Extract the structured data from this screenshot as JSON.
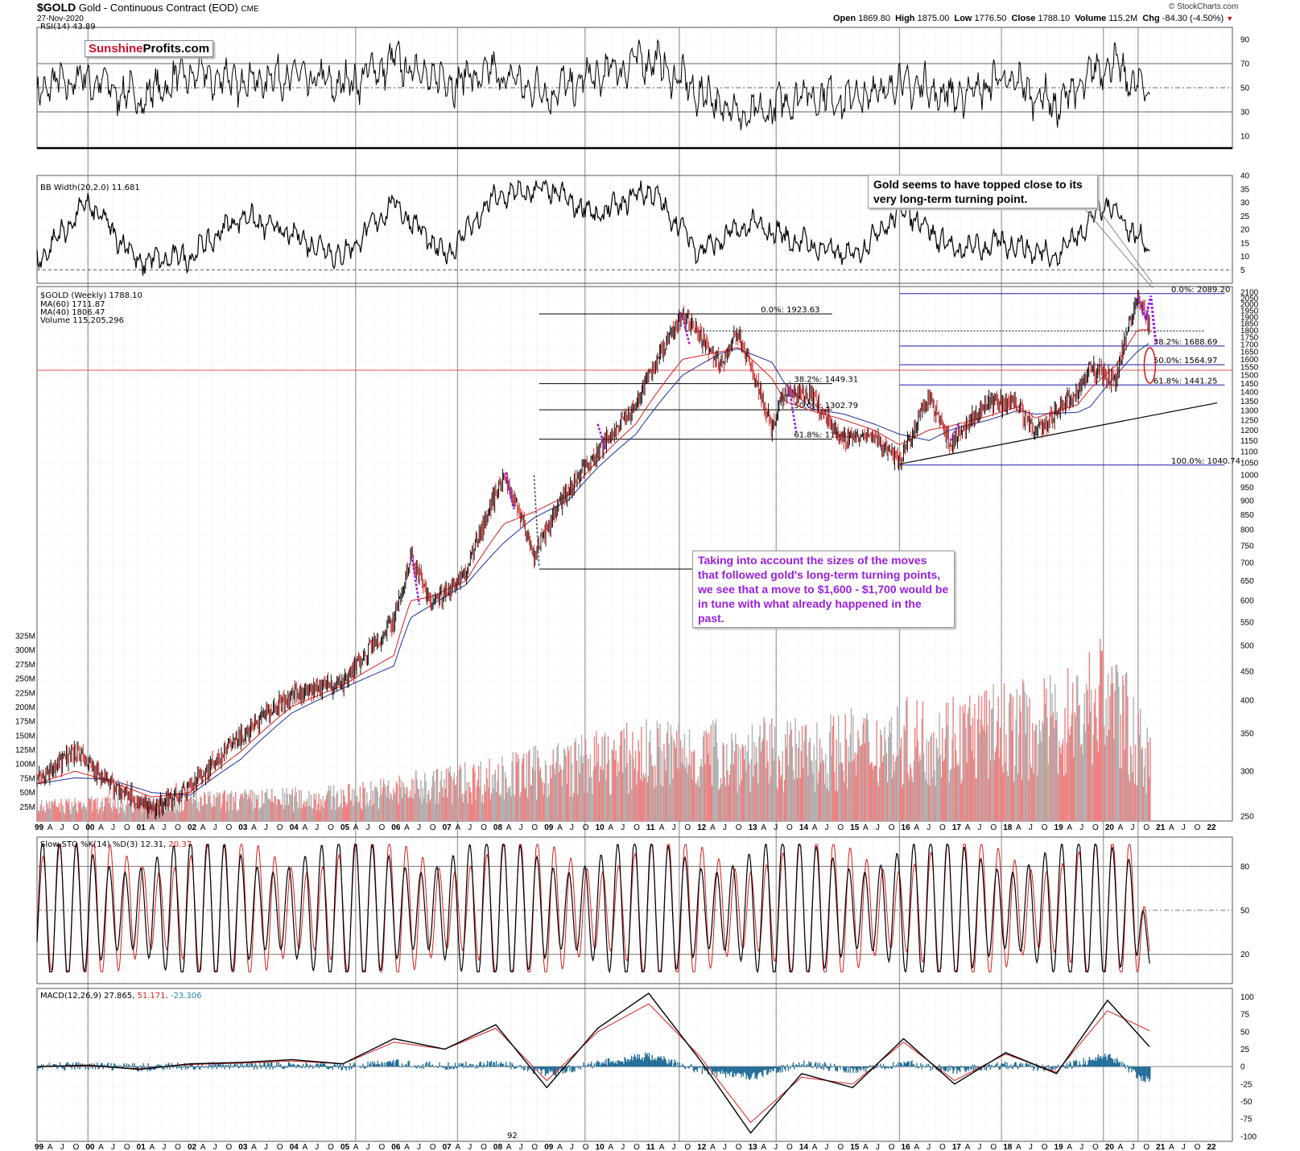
{
  "header": {
    "symbol": "$GOLD",
    "name": "Gold - Continuous Contract (EOD)",
    "exchange": "CME",
    "date": "27-Nov-2020",
    "copyright": "© StockCharts.com",
    "open_label": "Open",
    "open": "1869.80",
    "high_label": "High",
    "high": "1875.00",
    "low_label": "Low",
    "low": "1776.50",
    "close_label": "Close",
    "close": "1788.10",
    "volume_label": "Volume",
    "volume": "115.2M",
    "chg_label": "Chg",
    "chg": "-84.30 (-4.50%)"
  },
  "logo": {
    "part1": "Sunshine",
    "part2": "Profits.com"
  },
  "panels": {
    "rsi": {
      "label": "RSI(14) 43.89",
      "ticks": [
        "90",
        "70",
        "50",
        "30",
        "10"
      ]
    },
    "bbw": {
      "label": "BB Width(20,2.0) 11.681",
      "ticks": [
        "40",
        "35",
        "30",
        "25",
        "20",
        "15",
        "10",
        "5"
      ]
    },
    "price": {
      "legend": [
        "$GOLD (Weekly) 1788.10",
        "MA(60) 1711.87",
        "MA(40) 1806.47",
        "Volume 115,205,296"
      ],
      "ticks": [
        "2100",
        "2050",
        "2000",
        "1950",
        "1900",
        "1850",
        "1800",
        "1750",
        "1700",
        "1650",
        "1600",
        "1550",
        "1500",
        "1450",
        "1400",
        "1350",
        "1300",
        "1250",
        "1200",
        "1150",
        "1100",
        "1050",
        "1000",
        "950",
        "900",
        "850",
        "800",
        "750",
        "700",
        "650",
        "600",
        "550",
        "500",
        "450",
        "400",
        "350",
        "300",
        "250"
      ],
      "volume_ticks": [
        "325M",
        "300M",
        "275M",
        "250M",
        "225M",
        "200M",
        "175M",
        "150M",
        "125M",
        "100M",
        "75M",
        "50M",
        "25M"
      ]
    },
    "sto": {
      "label": "Slow STO %K(14) %D(3) 12.31,",
      "label_d": "20.37",
      "ticks": [
        "80",
        "50",
        "20"
      ]
    },
    "macd": {
      "label": "MACD(12,26,9) 27.865,",
      "label_signal": "51.171,",
      "label_hist": "-23.306",
      "ticks": [
        "100",
        "75",
        "50",
        "25",
        "0",
        "-25",
        "-50",
        "-75",
        "-100"
      ],
      "extra_label": "92"
    }
  },
  "x_axis_labels": [
    "99",
    "A",
    "J",
    "O",
    "00",
    "A",
    "J",
    "O",
    "01",
    "A",
    "J",
    "O",
    "02",
    "A",
    "J",
    "O",
    "03",
    "A",
    "J",
    "O",
    "04",
    "A",
    "J",
    "O",
    "05",
    "A",
    "J",
    "O",
    "06",
    "A",
    "J",
    "O",
    "07",
    "A",
    "J",
    "O",
    "08",
    "A",
    "J",
    "O",
    "09",
    "A",
    "J",
    "O",
    "10",
    "A",
    "J",
    "O",
    "11",
    "A",
    "J",
    "O",
    "12",
    "A",
    "J",
    "O",
    "13",
    "A",
    "J",
    "O",
    "14",
    "A",
    "J",
    "O",
    "15",
    "A",
    "J",
    "O",
    "16",
    "A",
    "J",
    "O",
    "17",
    "A",
    "J",
    "O",
    "18",
    "A",
    "J",
    "O",
    "19",
    "A",
    "J",
    "O",
    "20",
    "A",
    "J",
    "O",
    "21",
    "A",
    "J",
    "O",
    "22"
  ],
  "fib_2011": [
    "0.0%: 1923.63",
    "38.2%: 1449.31",
    "50.0%: 1302.79",
    "61.8%: 1156.27",
    "100.0%: 681.95"
  ],
  "fib_2020": [
    "0.0%: 2089.20",
    "38.2%: 1688.69",
    "50.0%: 1564.97",
    "61.8%: 1441.25",
    "100.0%: 1040.74"
  ],
  "annotations": {
    "top": "Gold seems to have topped close to its very long-term turning point.",
    "middle": "Taking into account the sizes of the moves that followed gold's long-term turning points, we see that a move to $1,600 - $1,700 would be in tune with what already happened in the past."
  },
  "colors": {
    "ma60": "#1f2f9e",
    "ma40": "#d62020",
    "volume": "#b0b0b0",
    "volume_up": "#f08080",
    "purple": "#9b1ee0",
    "hist": "#1f6b96",
    "fib": "#1a1aa8"
  },
  "chart_data": [
    {
      "type": "line",
      "title": "RSI(14)",
      "x": [
        "1999",
        "2000",
        "2001",
        "2002",
        "2003",
        "2004",
        "2005",
        "2006",
        "2007",
        "2008",
        "2009",
        "2010",
        "2011",
        "2012",
        "2013",
        "2014",
        "2015",
        "2016",
        "2017",
        "2018",
        "2019",
        "2020",
        "2020-11"
      ],
      "series": [
        {
          "values": [
            50,
            58,
            40,
            62,
            55,
            60,
            52,
            72,
            55,
            62,
            45,
            60,
            75,
            45,
            25,
            45,
            40,
            55,
            42,
            58,
            35,
            72,
            43.89
          ]
        }
      ],
      "ylim": [
        0,
        100
      ]
    },
    {
      "type": "line",
      "title": "BB Width(20,2.0)",
      "x": [
        "1999",
        "2000",
        "2001",
        "2002",
        "2003",
        "2004",
        "2005",
        "2006",
        "2007",
        "2008",
        "2009",
        "2010",
        "2011",
        "2012",
        "2013",
        "2014",
        "2015",
        "2016",
        "2017",
        "2018",
        "2019",
        "2020",
        "2020-11"
      ],
      "series": [
        {
          "values": [
            8,
            30,
            8,
            10,
            25,
            18,
            10,
            30,
            10,
            32,
            35,
            25,
            35,
            12,
            22,
            15,
            10,
            28,
            12,
            15,
            10,
            30,
            11.681
          ]
        }
      ],
      "ylim": [
        0,
        40
      ]
    },
    {
      "type": "line",
      "title": "$GOLD (Weekly)",
      "x": [
        "1999-01",
        "1999-10",
        "2000-06",
        "2001-04",
        "2002-01",
        "2003-01",
        "2004-01",
        "2005-01",
        "2006-01",
        "2006-05",
        "2006-10",
        "2007-06",
        "2008-03",
        "2008-10",
        "2009-06",
        "2010-01",
        "2010-10",
        "2011-09",
        "2012-06",
        "2012-10",
        "2013-06",
        "2013-09",
        "2014-03",
        "2014-11",
        "2015-06",
        "2015-12",
        "2016-07",
        "2016-12",
        "2017-09",
        "2018-04",
        "2018-08",
        "2019-06",
        "2019-09",
        "2020-03",
        "2020-08",
        "2020-11"
      ],
      "series": [
        {
          "name": "$GOLD (Weekly)",
          "values": [
            288,
            325,
            285,
            258,
            280,
            345,
            410,
            430,
            550,
            720,
            590,
            670,
            1000,
            720,
            940,
            1100,
            1330,
            1920,
            1560,
            1790,
            1200,
            1420,
            1385,
            1150,
            1170,
            1050,
            1370,
            1130,
            1350,
            1320,
            1180,
            1400,
            1550,
            1470,
            2089,
            1788
          ]
        },
        {
          "name": "MA(60)",
          "values": [
            285,
            292,
            290,
            275,
            272,
            315,
            380,
            420,
            460,
            560,
            590,
            640,
            760,
            840,
            900,
            1030,
            1180,
            1500,
            1640,
            1670,
            1580,
            1450,
            1310,
            1280,
            1230,
            1180,
            1150,
            1200,
            1250,
            1300,
            1280,
            1290,
            1320,
            1500,
            1650,
            1711.87
          ]
        },
        {
          "name": "MA(40)",
          "values": [
            285,
            300,
            288,
            270,
            275,
            325,
            390,
            425,
            480,
            600,
            610,
            650,
            820,
            860,
            920,
            1060,
            1230,
            1600,
            1650,
            1680,
            1480,
            1350,
            1300,
            1250,
            1200,
            1130,
            1200,
            1220,
            1270,
            1320,
            1260,
            1330,
            1420,
            1560,
            1800,
            1806.47
          ]
        }
      ],
      "ylim": [
        250,
        2150
      ],
      "scale": "log"
    },
    {
      "type": "bar",
      "title": "Volume",
      "x": [
        "1999",
        "2002",
        "2005",
        "2008",
        "2011",
        "2014",
        "2017",
        "2018",
        "2019",
        "2020",
        "2020-11"
      ],
      "values": [
        30,
        40,
        50,
        90,
        140,
        140,
        180,
        190,
        200,
        270,
        115.2
      ],
      "ylim": [
        0,
        325
      ]
    },
    {
      "type": "line",
      "title": "Slow STO %K(14) %D(3)",
      "x": [
        "1999",
        "2000",
        "2001",
        "2002",
        "2003",
        "2004",
        "2005",
        "2006",
        "2007",
        "2008",
        "2009",
        "2010",
        "2011",
        "2012",
        "2013",
        "2014",
        "2015",
        "2016",
        "2017",
        "2018",
        "2019",
        "2020",
        "2020-11"
      ],
      "series": [
        {
          "name": "%K",
          "values": [
            40,
            85,
            20,
            90,
            30,
            85,
            40,
            90,
            25,
            85,
            15,
            90,
            80,
            30,
            20,
            80,
            25,
            85,
            30,
            80,
            20,
            90,
            12.31
          ]
        },
        {
          "name": "%D",
          "values": [
            45,
            80,
            25,
            85,
            35,
            80,
            45,
            85,
            30,
            80,
            20,
            85,
            75,
            35,
            25,
            75,
            30,
            80,
            35,
            75,
            25,
            88,
            20.37
          ]
        }
      ],
      "ylim": [
        0,
        100
      ]
    },
    {
      "type": "line",
      "title": "MACD(12,26,9)",
      "x": [
        "1999",
        "2000",
        "2001",
        "2002",
        "2003",
        "2004",
        "2005",
        "2006",
        "2007",
        "2008",
        "2009",
        "2010",
        "2011",
        "2012",
        "2013",
        "2014",
        "2015",
        "2016",
        "2017",
        "2018",
        "2019",
        "2020",
        "2020-11"
      ],
      "series": [
        {
          "name": "MACD",
          "values": [
            0,
            2,
            -4,
            4,
            6,
            10,
            4,
            40,
            25,
            60,
            -30,
            55,
            105,
            10,
            -95,
            -10,
            -30,
            40,
            -25,
            20,
            -10,
            95,
            27.865
          ]
        },
        {
          "name": "Signal",
          "values": [
            0,
            1,
            -3,
            3,
            5,
            8,
            4,
            35,
            25,
            55,
            -20,
            50,
            90,
            15,
            -80,
            -15,
            -25,
            35,
            -20,
            18,
            -8,
            80,
            51.171
          ]
        },
        {
          "name": "Histogram",
          "values": [
            0,
            1,
            -1,
            1,
            1,
            2,
            0,
            5,
            0,
            5,
            -10,
            5,
            15,
            -5,
            -15,
            5,
            -5,
            5,
            -5,
            2,
            -2,
            15,
            -23.306
          ]
        }
      ],
      "ylim": [
        -100,
        110
      ]
    }
  ]
}
